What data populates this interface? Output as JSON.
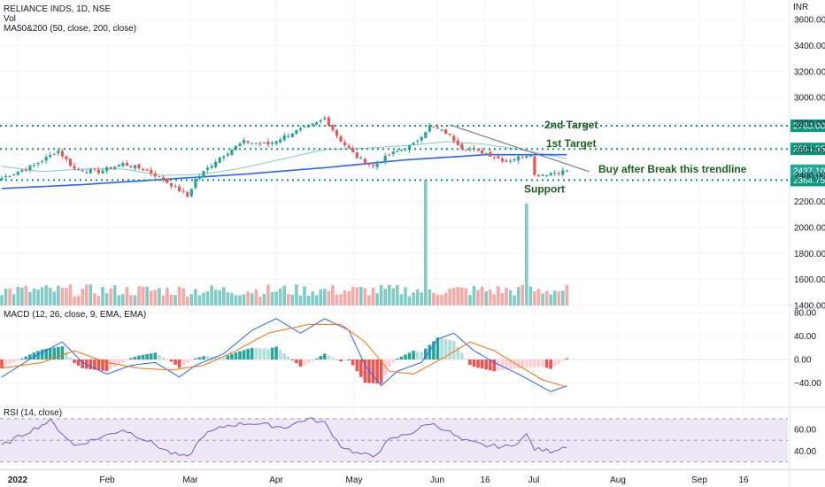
{
  "header": {
    "title": "RELIANCE INDS, 1D, NSE",
    "vol_label": "Vol",
    "ma_label": "MA50&200 (50, close, 200, close)",
    "macd_label": "MACD (12, 26, close, 9, EMA, EMA)",
    "rsi_label": "RSI (14, close)",
    "currency": "INR"
  },
  "colors": {
    "up": "#26a69a",
    "down": "#ef5350",
    "up_light": "#b2dfdb",
    "down_light": "#ffcdd2",
    "ma50": "#80cbc4",
    "ma200": "#2962ff",
    "macd_line": "#2962ff",
    "signal_line": "#ff6d00",
    "rsi_line": "#7e57c2",
    "rsi_band": "#ede7f6",
    "level": "#089981",
    "trendline": "#787b86",
    "annotation": "#1b5e20"
  },
  "chart_data": [
    {
      "type": "candlestick",
      "pane": "price",
      "title": "RELIANCE INDS, 1D, NSE",
      "ylabel": "INR",
      "ylim": [
        2040,
        3690
      ],
      "x_ticks": [
        "2022",
        "Feb",
        "Mar",
        "Apr",
        "May",
        "Jun",
        "16",
        "Jul",
        "Aug",
        "Sep",
        "16"
      ],
      "y_ticks": [
        2200,
        2400,
        2600,
        2800,
        3000,
        3200,
        3400,
        3600
      ],
      "y_tick_labels": [
        "2200.00",
        "2400.00",
        "2600.00",
        "2800.00",
        "3000.00",
        "3200.00",
        "3400.00",
        "3600.00"
      ],
      "anchors": [
        {
          "bar": 0,
          "close": 2380
        },
        {
          "bar": 8,
          "close": 2480
        },
        {
          "bar": 14,
          "close": 2590
        },
        {
          "bar": 18,
          "close": 2450
        },
        {
          "bar": 24,
          "close": 2430
        },
        {
          "bar": 30,
          "close": 2490
        },
        {
          "bar": 36,
          "close": 2440
        },
        {
          "bar": 42,
          "close": 2330
        },
        {
          "bar": 46,
          "close": 2240
        },
        {
          "bar": 48,
          "close": 2370
        },
        {
          "bar": 54,
          "close": 2540
        },
        {
          "bar": 60,
          "close": 2660
        },
        {
          "bar": 66,
          "close": 2640
        },
        {
          "bar": 72,
          "close": 2730
        },
        {
          "bar": 78,
          "close": 2800
        },
        {
          "bar": 80,
          "close": 2840
        },
        {
          "bar": 84,
          "close": 2670
        },
        {
          "bar": 88,
          "close": 2540
        },
        {
          "bar": 92,
          "close": 2470
        },
        {
          "bar": 96,
          "close": 2560
        },
        {
          "bar": 102,
          "close": 2640
        },
        {
          "bar": 106,
          "close": 2780
        },
        {
          "bar": 110,
          "close": 2730
        },
        {
          "bar": 114,
          "close": 2620
        },
        {
          "bar": 120,
          "close": 2570
        },
        {
          "bar": 125,
          "close": 2510
        },
        {
          "bar": 131,
          "close": 2570
        },
        {
          "bar": 132,
          "close": 2400
        },
        {
          "bar": 134,
          "close": 2410
        },
        {
          "bar": 140,
          "close": 2437
        }
      ],
      "ma50_anchors": [
        {
          "bar": 0,
          "value": 2470
        },
        {
          "bar": 10,
          "value": 2430
        },
        {
          "bar": 20,
          "value": 2450
        },
        {
          "bar": 30,
          "value": 2450
        },
        {
          "bar": 40,
          "value": 2400
        },
        {
          "bar": 50,
          "value": 2410
        },
        {
          "bar": 60,
          "value": 2460
        },
        {
          "bar": 70,
          "value": 2530
        },
        {
          "bar": 80,
          "value": 2600
        },
        {
          "bar": 90,
          "value": 2610
        },
        {
          "bar": 100,
          "value": 2630
        },
        {
          "bar": 110,
          "value": 2660
        },
        {
          "bar": 120,
          "value": 2640
        },
        {
          "bar": 130,
          "value": 2590
        },
        {
          "bar": 140,
          "value": 2530
        }
      ],
      "ma200_anchors": [
        {
          "bar": 0,
          "value": 2300
        },
        {
          "bar": 20,
          "value": 2330
        },
        {
          "bar": 40,
          "value": 2370
        },
        {
          "bar": 60,
          "value": 2410
        },
        {
          "bar": 80,
          "value": 2460
        },
        {
          "bar": 100,
          "value": 2520
        },
        {
          "bar": 120,
          "value": 2560
        },
        {
          "bar": 140,
          "value": 2560
        }
      ],
      "levels": [
        {
          "value": 2783.0,
          "label": "2nd Target",
          "tag": "2783.00"
        },
        {
          "value": 2604.35,
          "label": "1st Target",
          "tag": "2604.35"
        },
        {
          "value": 2364.75,
          "label": "Support",
          "tag": "2364.75"
        }
      ],
      "last_price": {
        "value": 2437.1,
        "tag": "2437.10"
      },
      "trendline": {
        "start": {
          "bar": 111,
          "value": 2790
        },
        "end": {
          "bar": 142,
          "value": 2430
        }
      },
      "trendline_label": "Buy after Break this trendline"
    },
    {
      "type": "bar",
      "pane": "volume",
      "title": "Vol",
      "y_ticks": [
        1400,
        1600,
        1800,
        2000
      ],
      "y_tick_labels": [
        "1400.00",
        "1600.00",
        "1800.00",
        "2000.00"
      ],
      "spikes": [
        {
          "bar": 105,
          "relative_height": 4.0
        },
        {
          "bar": 130,
          "relative_height": 4.6
        }
      ]
    },
    {
      "type": "line",
      "pane": "macd",
      "title": "MACD (12, 26, close, 9, EMA, EMA)",
      "ylim": [
        -75,
        88
      ],
      "y_ticks": [
        80,
        40,
        0,
        -40
      ],
      "y_tick_labels": [
        "80.00",
        "40.00",
        "0.00",
        "−40.00"
      ],
      "macd_anchors": [
        {
          "bar": 0,
          "value": -30
        },
        {
          "bar": 8,
          "value": 5
        },
        {
          "bar": 15,
          "value": 30
        },
        {
          "bar": 20,
          "value": -5
        },
        {
          "bar": 26,
          "value": -25
        },
        {
          "bar": 32,
          "value": -10
        },
        {
          "bar": 38,
          "value": -5
        },
        {
          "bar": 44,
          "value": -30
        },
        {
          "bar": 48,
          "value": -10
        },
        {
          "bar": 55,
          "value": 10
        },
        {
          "bar": 62,
          "value": 50
        },
        {
          "bar": 68,
          "value": 70
        },
        {
          "bar": 74,
          "value": 45
        },
        {
          "bar": 80,
          "value": 70
        },
        {
          "bar": 86,
          "value": 50
        },
        {
          "bar": 90,
          "value": -10
        },
        {
          "bar": 94,
          "value": -45
        },
        {
          "bar": 98,
          "value": -20
        },
        {
          "bar": 104,
          "value": -5
        },
        {
          "bar": 108,
          "value": 35
        },
        {
          "bar": 112,
          "value": 45
        },
        {
          "bar": 117,
          "value": 15
        },
        {
          "bar": 122,
          "value": -5
        },
        {
          "bar": 128,
          "value": -25
        },
        {
          "bar": 132,
          "value": -40
        },
        {
          "bar": 136,
          "value": -55
        },
        {
          "bar": 140,
          "value": -45
        }
      ],
      "signal_anchors": [
        {
          "bar": 0,
          "value": -15
        },
        {
          "bar": 10,
          "value": -5
        },
        {
          "bar": 18,
          "value": 15
        },
        {
          "bar": 26,
          "value": -5
        },
        {
          "bar": 34,
          "value": -15
        },
        {
          "bar": 42,
          "value": -18
        },
        {
          "bar": 50,
          "value": -10
        },
        {
          "bar": 58,
          "value": 15
        },
        {
          "bar": 66,
          "value": 45
        },
        {
          "bar": 76,
          "value": 60
        },
        {
          "bar": 84,
          "value": 60
        },
        {
          "bar": 90,
          "value": 30
        },
        {
          "bar": 96,
          "value": -20
        },
        {
          "bar": 102,
          "value": -25
        },
        {
          "bar": 110,
          "value": 5
        },
        {
          "bar": 116,
          "value": 30
        },
        {
          "bar": 122,
          "value": 15
        },
        {
          "bar": 128,
          "value": -10
        },
        {
          "bar": 134,
          "value": -35
        },
        {
          "bar": 140,
          "value": -47
        }
      ]
    },
    {
      "type": "line",
      "pane": "rsi",
      "title": "RSI (14, close)",
      "ylim": [
        24,
        76
      ],
      "y_ticks": [
        60,
        40
      ],
      "y_tick_labels": [
        "60.00",
        "40.00"
      ],
      "bands": [
        30,
        50,
        70
      ],
      "rsi_anchors": [
        {
          "bar": 0,
          "value": 45
        },
        {
          "bar": 5,
          "value": 55
        },
        {
          "bar": 12,
          "value": 68
        },
        {
          "bar": 18,
          "value": 45
        },
        {
          "bar": 24,
          "value": 52
        },
        {
          "bar": 30,
          "value": 60
        },
        {
          "bar": 36,
          "value": 50
        },
        {
          "bar": 42,
          "value": 38
        },
        {
          "bar": 46,
          "value": 34
        },
        {
          "bar": 50,
          "value": 55
        },
        {
          "bar": 56,
          "value": 64
        },
        {
          "bar": 62,
          "value": 66
        },
        {
          "bar": 70,
          "value": 62
        },
        {
          "bar": 76,
          "value": 70
        },
        {
          "bar": 80,
          "value": 66
        },
        {
          "bar": 84,
          "value": 45
        },
        {
          "bar": 88,
          "value": 38
        },
        {
          "bar": 92,
          "value": 35
        },
        {
          "bar": 96,
          "value": 50
        },
        {
          "bar": 102,
          "value": 58
        },
        {
          "bar": 106,
          "value": 66
        },
        {
          "bar": 110,
          "value": 60
        },
        {
          "bar": 114,
          "value": 50
        },
        {
          "bar": 120,
          "value": 45
        },
        {
          "bar": 126,
          "value": 44
        },
        {
          "bar": 130,
          "value": 55
        },
        {
          "bar": 132,
          "value": 42
        },
        {
          "bar": 136,
          "value": 40
        },
        {
          "bar": 140,
          "value": 45
        }
      ]
    }
  ]
}
